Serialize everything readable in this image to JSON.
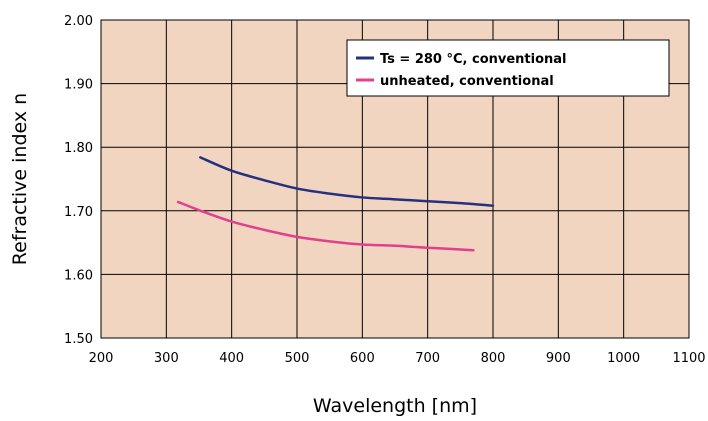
{
  "chart_data": {
    "type": "line",
    "xlabel": "Wavelength [nm]",
    "ylabel": "Refractive index n",
    "xlim": [
      200,
      1100
    ],
    "ylim": [
      1.5,
      2.0
    ],
    "x_ticks": [
      "200",
      "300",
      "400",
      "500",
      "600",
      "700",
      "800",
      "900",
      "1000",
      "1100"
    ],
    "y_ticks": [
      "1.50",
      "1.60",
      "1.70",
      "1.80",
      "1.90",
      "2.00"
    ],
    "grid": true,
    "legend_position": "top-right",
    "plot_background": "#f2d5c1",
    "series": [
      {
        "name": "Ts = 280 °C, conventional",
        "color": "#25317e",
        "x": [
          352,
          400,
          450,
          500,
          550,
          600,
          650,
          700,
          750,
          800
        ],
        "y": [
          1.784,
          1.763,
          1.748,
          1.735,
          1.727,
          1.721,
          1.718,
          1.715,
          1.712,
          1.708
        ]
      },
      {
        "name": "unheated, conventional",
        "color": "#e0408d",
        "x": [
          318,
          350,
          400,
          450,
          500,
          550,
          600,
          650,
          700,
          770
        ],
        "y": [
          1.714,
          1.701,
          1.683,
          1.67,
          1.659,
          1.652,
          1.647,
          1.645,
          1.642,
          1.638
        ]
      }
    ]
  }
}
